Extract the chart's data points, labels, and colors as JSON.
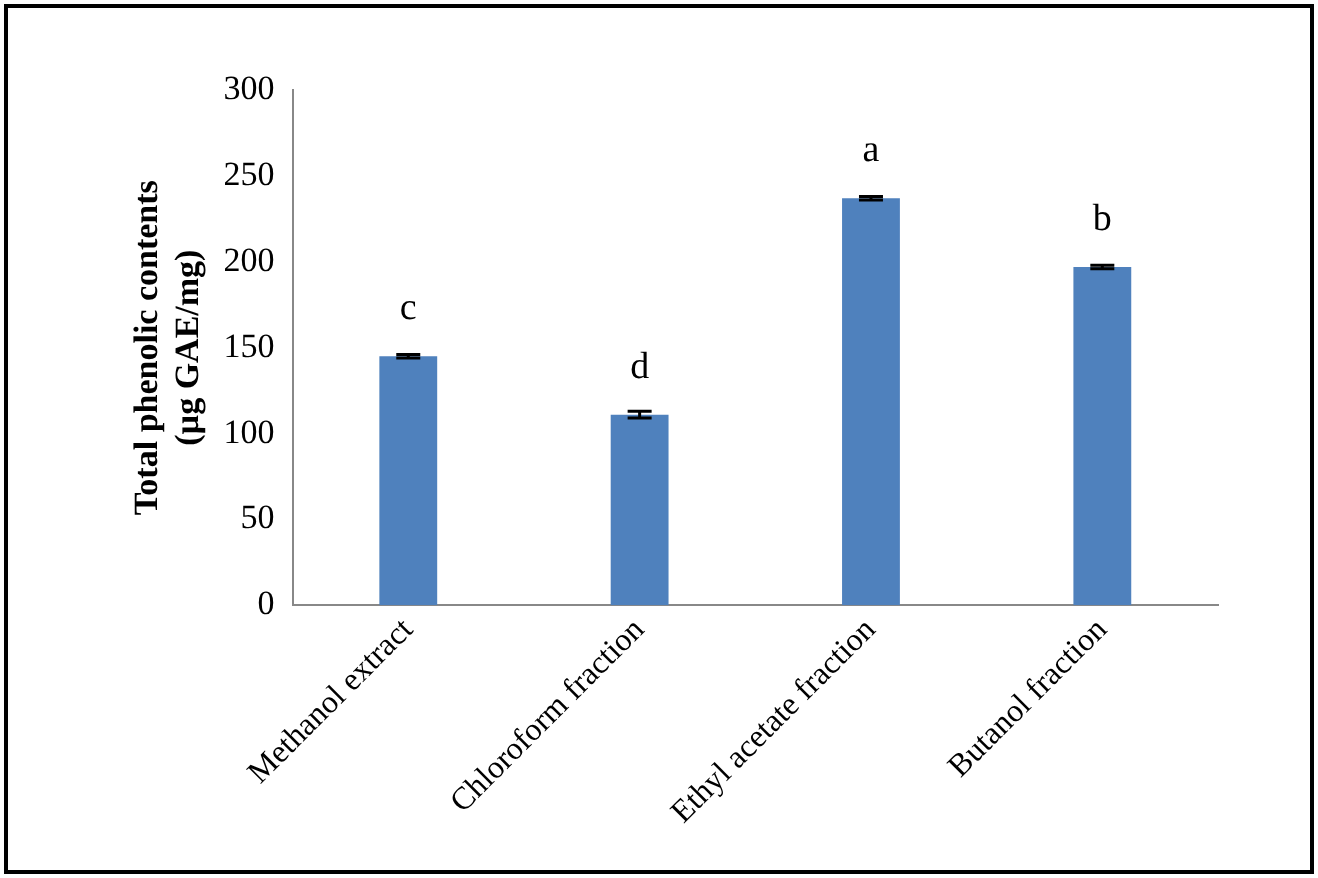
{
  "chart_data": {
    "type": "bar",
    "ylabel": "Total phenolic contents\n(µg GAE/mg)",
    "categories": [
      "Methanol extract",
      "Chloroform fraction",
      "Ethyl acetate fraction",
      "Butanol fraction"
    ],
    "values": [
      145,
      111,
      237,
      197
    ],
    "errors": [
      1,
      2,
      1,
      1
    ],
    "color": "#4f81bd",
    "ylim": [
      0,
      300
    ],
    "yticks": [
      0,
      50,
      100,
      150,
      200,
      250,
      300
    ],
    "grid": false,
    "legend": false,
    "annotations": [
      {
        "text": "c",
        "x": "Methanol extract",
        "y": 145
      },
      {
        "text": "d",
        "x": "Chloroform fraction",
        "y": 111
      },
      {
        "text": "a",
        "x": "Ethyl acetate fraction",
        "y": 237
      },
      {
        "text": "b",
        "x": "Butanol fraction",
        "y": 197
      }
    ]
  }
}
